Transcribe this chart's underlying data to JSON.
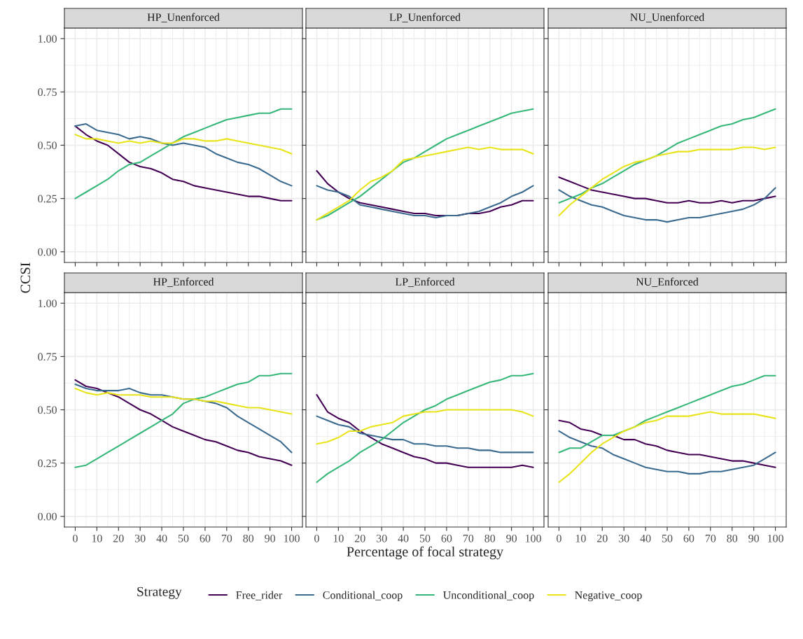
{
  "chart_data": [
    {
      "type": "line",
      "title": "HP_Unenforced",
      "ylabel": "CCSI",
      "legend_title": "Strategy",
      "legend": "bottom",
      "tick_labels": "y",
      "grid": true,
      "xlim": [
        -5,
        105
      ],
      "ylim": [
        -0.05,
        1.05
      ],
      "xticks": [
        0,
        10,
        20,
        30,
        40,
        50,
        60,
        70,
        80,
        90,
        100
      ],
      "yticks": [
        {
          "value": 0,
          "label": "0.00"
        },
        {
          "value": 0.25,
          "label": "0.25"
        },
        {
          "value": 0.5,
          "label": "0.50"
        },
        {
          "value": 0.75,
          "label": "0.75"
        },
        {
          "value": 1,
          "label": "1.00"
        }
      ],
      "x": [
        0,
        5,
        10,
        15,
        20,
        25,
        30,
        35,
        40,
        45,
        50,
        55,
        60,
        65,
        70,
        75,
        80,
        85,
        90,
        95,
        100
      ],
      "series": [
        {
          "name": "Free_rider",
          "color": "#440154",
          "values": [
            0.59,
            0.55,
            0.52,
            0.5,
            0.46,
            0.42,
            0.4,
            0.39,
            0.37,
            0.34,
            0.33,
            0.31,
            0.3,
            0.29,
            0.28,
            0.27,
            0.26,
            0.26,
            0.25,
            0.24,
            0.24
          ]
        },
        {
          "name": "Conditional_coop",
          "color": "#3b6a8f",
          "values": [
            0.59,
            0.6,
            0.57,
            0.56,
            0.55,
            0.53,
            0.54,
            0.53,
            0.51,
            0.5,
            0.51,
            0.5,
            0.49,
            0.46,
            0.44,
            0.42,
            0.41,
            0.39,
            0.36,
            0.33,
            0.31
          ]
        },
        {
          "name": "Unconditional_coop",
          "color": "#35b779",
          "values": [
            0.25,
            0.28,
            0.31,
            0.34,
            0.38,
            0.41,
            0.42,
            0.45,
            0.48,
            0.51,
            0.54,
            0.56,
            0.58,
            0.6,
            0.62,
            0.63,
            0.64,
            0.65,
            0.65,
            0.67,
            0.67
          ]
        },
        {
          "name": "Negative_coop",
          "color": "#e8e419",
          "values": [
            0.55,
            0.53,
            0.53,
            0.52,
            0.51,
            0.52,
            0.51,
            0.52,
            0.51,
            0.51,
            0.53,
            0.53,
            0.52,
            0.52,
            0.53,
            0.52,
            0.51,
            0.5,
            0.49,
            0.48,
            0.46
          ]
        }
      ]
    },
    {
      "type": "line",
      "title": "LP_Unenforced",
      "tick_labels": false,
      "grid": true,
      "xlim": [
        -5,
        105
      ],
      "ylim": [
        -0.05,
        1.05
      ],
      "xticks": [
        0,
        10,
        20,
        30,
        40,
        50,
        60,
        70,
        80,
        90,
        100
      ],
      "yticks": [
        0,
        0.25,
        0.5,
        0.75,
        1
      ],
      "x": [
        0,
        5,
        10,
        15,
        20,
        25,
        30,
        35,
        40,
        45,
        50,
        55,
        60,
        65,
        70,
        75,
        80,
        85,
        90,
        95,
        100
      ],
      "series": [
        {
          "color": "#440154",
          "values": [
            0.38,
            0.32,
            0.28,
            0.25,
            0.23,
            0.22,
            0.21,
            0.2,
            0.19,
            0.18,
            0.18,
            0.17,
            0.17,
            0.17,
            0.18,
            0.18,
            0.19,
            0.21,
            0.22,
            0.24,
            0.24
          ]
        },
        {
          "color": "#3b6a8f",
          "values": [
            0.31,
            0.29,
            0.28,
            0.26,
            0.22,
            0.21,
            0.2,
            0.19,
            0.18,
            0.17,
            0.17,
            0.16,
            0.17,
            0.17,
            0.18,
            0.19,
            0.21,
            0.23,
            0.26,
            0.28,
            0.31
          ]
        },
        {
          "color": "#35b779",
          "values": [
            0.15,
            0.17,
            0.2,
            0.23,
            0.26,
            0.3,
            0.34,
            0.38,
            0.42,
            0.44,
            0.47,
            0.5,
            0.53,
            0.55,
            0.57,
            0.59,
            0.61,
            0.63,
            0.65,
            0.66,
            0.67
          ]
        },
        {
          "color": "#e8e419",
          "values": [
            0.15,
            0.18,
            0.21,
            0.24,
            0.29,
            0.33,
            0.35,
            0.38,
            0.43,
            0.44,
            0.45,
            0.46,
            0.47,
            0.48,
            0.49,
            0.48,
            0.49,
            0.48,
            0.48,
            0.48,
            0.46
          ]
        }
      ]
    },
    {
      "type": "line",
      "title": "NU_Unenforced",
      "tick_labels": false,
      "grid": true,
      "xlim": [
        -5,
        105
      ],
      "ylim": [
        -0.05,
        1.05
      ],
      "xticks": [
        0,
        10,
        20,
        30,
        40,
        50,
        60,
        70,
        80,
        90,
        100
      ],
      "yticks": [
        0,
        0.25,
        0.5,
        0.75,
        1
      ],
      "x": [
        0,
        5,
        10,
        15,
        20,
        25,
        30,
        35,
        40,
        45,
        50,
        55,
        60,
        65,
        70,
        75,
        80,
        85,
        90,
        95,
        100
      ],
      "series": [
        {
          "color": "#440154",
          "values": [
            0.35,
            0.33,
            0.31,
            0.29,
            0.28,
            0.27,
            0.26,
            0.25,
            0.25,
            0.24,
            0.23,
            0.23,
            0.24,
            0.23,
            0.23,
            0.24,
            0.23,
            0.24,
            0.24,
            0.25,
            0.26
          ]
        },
        {
          "color": "#3b6a8f",
          "values": [
            0.29,
            0.26,
            0.24,
            0.22,
            0.21,
            0.19,
            0.17,
            0.16,
            0.15,
            0.15,
            0.14,
            0.15,
            0.16,
            0.16,
            0.17,
            0.18,
            0.19,
            0.2,
            0.22,
            0.25,
            0.3
          ]
        },
        {
          "color": "#35b779",
          "values": [
            0.23,
            0.25,
            0.27,
            0.3,
            0.32,
            0.35,
            0.38,
            0.41,
            0.43,
            0.45,
            0.48,
            0.51,
            0.53,
            0.55,
            0.57,
            0.59,
            0.6,
            0.62,
            0.63,
            0.65,
            0.67
          ]
        },
        {
          "color": "#e8e419",
          "values": [
            0.17,
            0.22,
            0.26,
            0.3,
            0.34,
            0.37,
            0.4,
            0.42,
            0.43,
            0.45,
            0.46,
            0.47,
            0.47,
            0.48,
            0.48,
            0.48,
            0.48,
            0.49,
            0.49,
            0.48,
            0.49
          ]
        }
      ]
    },
    {
      "type": "line",
      "title": "HP_Enforced",
      "grid": true,
      "xlim": [
        -5,
        105
      ],
      "ylim": [
        -0.05,
        1.05
      ],
      "xticks": [
        0,
        10,
        20,
        30,
        40,
        50,
        60,
        70,
        80,
        90,
        100
      ],
      "yticks": [
        {
          "value": 0,
          "label": "0.00"
        },
        {
          "value": 0.25,
          "label": "0.25"
        },
        {
          "value": 0.5,
          "label": "0.50"
        },
        {
          "value": 0.75,
          "label": "0.75"
        },
        {
          "value": 1,
          "label": "1.00"
        }
      ],
      "x": [
        0,
        5,
        10,
        15,
        20,
        25,
        30,
        35,
        40,
        45,
        50,
        55,
        60,
        65,
        70,
        75,
        80,
        85,
        90,
        95,
        100
      ],
      "series": [
        {
          "color": "#440154",
          "values": [
            0.64,
            0.61,
            0.6,
            0.58,
            0.56,
            0.53,
            0.5,
            0.48,
            0.45,
            0.42,
            0.4,
            0.38,
            0.36,
            0.35,
            0.33,
            0.31,
            0.3,
            0.28,
            0.27,
            0.26,
            0.24
          ]
        },
        {
          "color": "#3b6a8f",
          "values": [
            0.62,
            0.6,
            0.59,
            0.59,
            0.59,
            0.6,
            0.58,
            0.57,
            0.57,
            0.56,
            0.55,
            0.55,
            0.54,
            0.53,
            0.51,
            0.47,
            0.44,
            0.41,
            0.38,
            0.35,
            0.3
          ]
        },
        {
          "color": "#35b779",
          "values": [
            0.23,
            0.24,
            0.27,
            0.3,
            0.33,
            0.36,
            0.39,
            0.42,
            0.45,
            0.48,
            0.53,
            0.55,
            0.56,
            0.58,
            0.6,
            0.62,
            0.63,
            0.66,
            0.66,
            0.67,
            0.67
          ]
        },
        {
          "color": "#e8e419",
          "values": [
            0.6,
            0.58,
            0.57,
            0.58,
            0.57,
            0.57,
            0.57,
            0.56,
            0.56,
            0.56,
            0.55,
            0.55,
            0.54,
            0.54,
            0.53,
            0.52,
            0.51,
            0.51,
            0.5,
            0.49,
            0.48
          ]
        }
      ]
    },
    {
      "type": "line",
      "title": "LP_Enforced",
      "xlabel": "Percentage of focal strategy",
      "tick_labels": "x",
      "grid": true,
      "xlim": [
        -5,
        105
      ],
      "ylim": [
        -0.05,
        1.05
      ],
      "xticks": [
        0,
        10,
        20,
        30,
        40,
        50,
        60,
        70,
        80,
        90,
        100
      ],
      "yticks": [
        0,
        0.25,
        0.5,
        0.75,
        1
      ],
      "x": [
        0,
        5,
        10,
        15,
        20,
        25,
        30,
        35,
        40,
        45,
        50,
        55,
        60,
        65,
        70,
        75,
        80,
        85,
        90,
        95,
        100
      ],
      "series": [
        {
          "color": "#440154",
          "values": [
            0.57,
            0.49,
            0.46,
            0.44,
            0.4,
            0.37,
            0.34,
            0.32,
            0.3,
            0.28,
            0.27,
            0.25,
            0.25,
            0.24,
            0.23,
            0.23,
            0.23,
            0.23,
            0.23,
            0.24,
            0.23
          ]
        },
        {
          "color": "#3b6a8f",
          "values": [
            0.47,
            0.45,
            0.43,
            0.42,
            0.39,
            0.38,
            0.37,
            0.36,
            0.36,
            0.34,
            0.34,
            0.33,
            0.33,
            0.32,
            0.32,
            0.31,
            0.31,
            0.3,
            0.3,
            0.3,
            0.3
          ]
        },
        {
          "color": "#35b779",
          "values": [
            0.16,
            0.2,
            0.23,
            0.26,
            0.3,
            0.33,
            0.36,
            0.4,
            0.44,
            0.47,
            0.5,
            0.52,
            0.55,
            0.57,
            0.59,
            0.61,
            0.63,
            0.64,
            0.66,
            0.66,
            0.67
          ]
        },
        {
          "color": "#e8e419",
          "values": [
            0.34,
            0.35,
            0.37,
            0.4,
            0.4,
            0.42,
            0.43,
            0.44,
            0.47,
            0.48,
            0.49,
            0.49,
            0.5,
            0.5,
            0.5,
            0.5,
            0.5,
            0.5,
            0.5,
            0.49,
            0.47
          ]
        }
      ]
    },
    {
      "type": "line",
      "title": "NU_Enforced",
      "tick_labels": "x",
      "grid": true,
      "xlim": [
        -5,
        105
      ],
      "ylim": [
        -0.05,
        1.05
      ],
      "xticks": [
        0,
        10,
        20,
        30,
        40,
        50,
        60,
        70,
        80,
        90,
        100
      ],
      "yticks": [
        0,
        0.25,
        0.5,
        0.75,
        1
      ],
      "x": [
        0,
        5,
        10,
        15,
        20,
        25,
        30,
        35,
        40,
        45,
        50,
        55,
        60,
        65,
        70,
        75,
        80,
        85,
        90,
        95,
        100
      ],
      "series": [
        {
          "color": "#440154",
          "values": [
            0.45,
            0.44,
            0.41,
            0.4,
            0.38,
            0.38,
            0.36,
            0.36,
            0.34,
            0.33,
            0.31,
            0.3,
            0.29,
            0.29,
            0.28,
            0.27,
            0.26,
            0.26,
            0.25,
            0.24,
            0.23
          ]
        },
        {
          "color": "#3b6a8f",
          "values": [
            0.4,
            0.37,
            0.35,
            0.33,
            0.32,
            0.29,
            0.27,
            0.25,
            0.23,
            0.22,
            0.21,
            0.21,
            0.2,
            0.2,
            0.21,
            0.21,
            0.22,
            0.23,
            0.24,
            0.27,
            0.3
          ]
        },
        {
          "color": "#35b779",
          "values": [
            0.3,
            0.32,
            0.32,
            0.35,
            0.38,
            0.38,
            0.4,
            0.42,
            0.45,
            0.47,
            0.49,
            0.51,
            0.53,
            0.55,
            0.57,
            0.59,
            0.61,
            0.62,
            0.64,
            0.66,
            0.66
          ]
        },
        {
          "color": "#e8e419",
          "values": [
            0.16,
            0.2,
            0.25,
            0.3,
            0.34,
            0.37,
            0.4,
            0.42,
            0.44,
            0.45,
            0.47,
            0.47,
            0.47,
            0.48,
            0.49,
            0.48,
            0.48,
            0.48,
            0.48,
            0.47,
            0.46
          ]
        }
      ]
    }
  ]
}
